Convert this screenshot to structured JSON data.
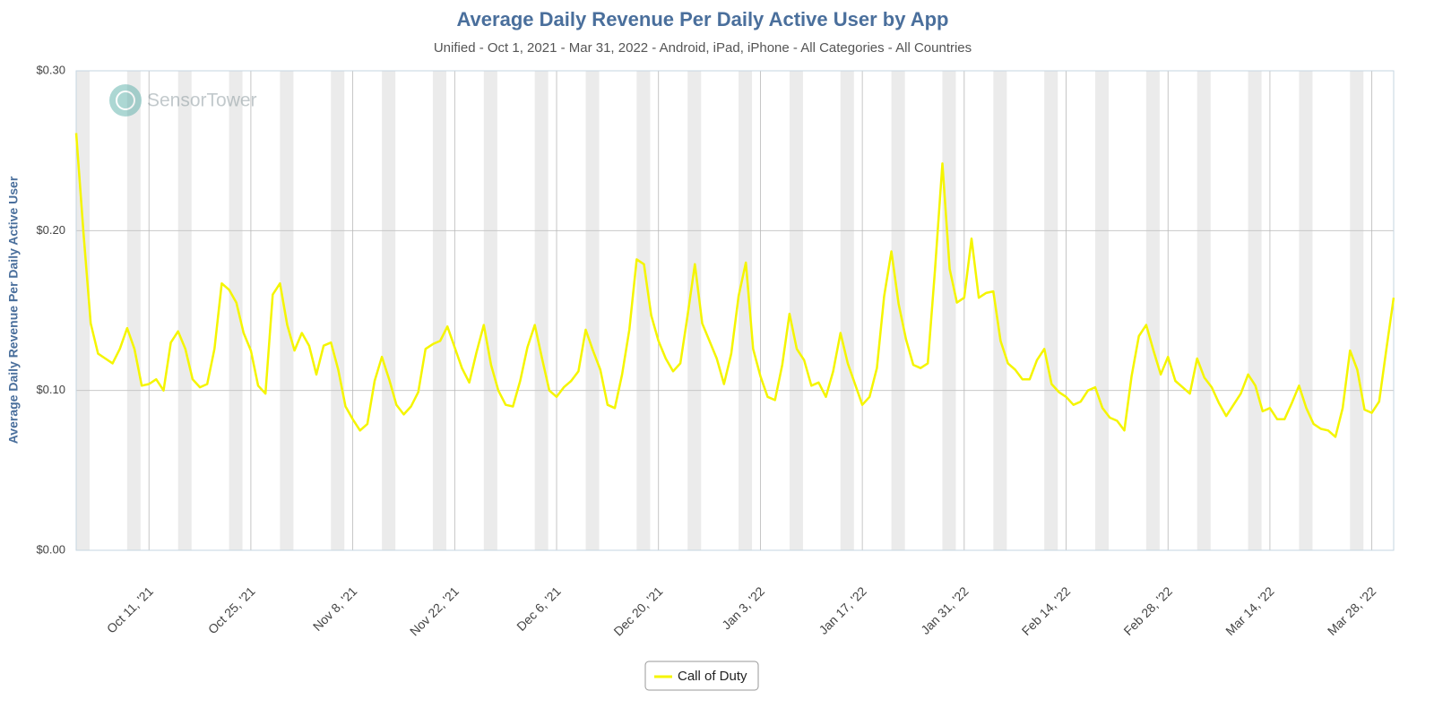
{
  "chart_data": {
    "type": "line",
    "title": "Average Daily Revenue Per Daily Active User by App",
    "subtitle": "Unified - Oct 1, 2021 - Mar 31, 2022 - Android, iPad, iPhone - All Categories - All Countries",
    "y_label": "Average Daily Revenue Per Daily Active User",
    "watermark": "SensorTower",
    "x": [
      "2021-10-01",
      "2021-10-02",
      "2021-10-03",
      "2021-10-04",
      "2021-10-05",
      "2021-10-06",
      "2021-10-07",
      "2021-10-08",
      "2021-10-09",
      "2021-10-10",
      "2021-10-11",
      "2021-10-12",
      "2021-10-13",
      "2021-10-14",
      "2021-10-15",
      "2021-10-16",
      "2021-10-17",
      "2021-10-18",
      "2021-10-19",
      "2021-10-20",
      "2021-10-21",
      "2021-10-22",
      "2021-10-23",
      "2021-10-24",
      "2021-10-25",
      "2021-10-26",
      "2021-10-27",
      "2021-10-28",
      "2021-10-29",
      "2021-10-30",
      "2021-10-31",
      "2021-11-01",
      "2021-11-02",
      "2021-11-03",
      "2021-11-04",
      "2021-11-05",
      "2021-11-06",
      "2021-11-07",
      "2021-11-08",
      "2021-11-09",
      "2021-11-10",
      "2021-11-11",
      "2021-11-12",
      "2021-11-13",
      "2021-11-14",
      "2021-11-15",
      "2021-11-16",
      "2021-11-17",
      "2021-11-18",
      "2021-11-19",
      "2021-11-20",
      "2021-11-21",
      "2021-11-22",
      "2021-11-23",
      "2021-11-24",
      "2021-11-25",
      "2021-11-26",
      "2021-11-27",
      "2021-11-28",
      "2021-11-29",
      "2021-11-30",
      "2021-12-01",
      "2021-12-02",
      "2021-12-03",
      "2021-12-04",
      "2021-12-05",
      "2021-12-06",
      "2021-12-07",
      "2021-12-08",
      "2021-12-09",
      "2021-12-10",
      "2021-12-11",
      "2021-12-12",
      "2021-12-13",
      "2021-12-14",
      "2021-12-15",
      "2021-12-16",
      "2021-12-17",
      "2021-12-18",
      "2021-12-19",
      "2021-12-20",
      "2021-12-21",
      "2021-12-22",
      "2021-12-23",
      "2021-12-24",
      "2021-12-25",
      "2021-12-26",
      "2021-12-27",
      "2021-12-28",
      "2021-12-29",
      "2021-12-30",
      "2021-12-31",
      "2022-01-01",
      "2022-01-02",
      "2022-01-03",
      "2022-01-04",
      "2022-01-05",
      "2022-01-06",
      "2022-01-07",
      "2022-01-08",
      "2022-01-09",
      "2022-01-10",
      "2022-01-11",
      "2022-01-12",
      "2022-01-13",
      "2022-01-14",
      "2022-01-15",
      "2022-01-16",
      "2022-01-17",
      "2022-01-18",
      "2022-01-19",
      "2022-01-20",
      "2022-01-21",
      "2022-01-22",
      "2022-01-23",
      "2022-01-24",
      "2022-01-25",
      "2022-01-26",
      "2022-01-27",
      "2022-01-28",
      "2022-01-29",
      "2022-01-30",
      "2022-01-31",
      "2022-02-01",
      "2022-02-02",
      "2022-02-03",
      "2022-02-04",
      "2022-02-05",
      "2022-02-06",
      "2022-02-07",
      "2022-02-08",
      "2022-02-09",
      "2022-02-10",
      "2022-02-11",
      "2022-02-12",
      "2022-02-13",
      "2022-02-14",
      "2022-02-15",
      "2022-02-16",
      "2022-02-17",
      "2022-02-18",
      "2022-02-19",
      "2022-02-20",
      "2022-02-21",
      "2022-02-22",
      "2022-02-23",
      "2022-02-24",
      "2022-02-25",
      "2022-02-26",
      "2022-02-27",
      "2022-02-28",
      "2022-03-01",
      "2022-03-02",
      "2022-03-03",
      "2022-03-04",
      "2022-03-05",
      "2022-03-06",
      "2022-03-07",
      "2022-03-08",
      "2022-03-09",
      "2022-03-10",
      "2022-03-11",
      "2022-03-12",
      "2022-03-13",
      "2022-03-14",
      "2022-03-15",
      "2022-03-16",
      "2022-03-17",
      "2022-03-18",
      "2022-03-19",
      "2022-03-20",
      "2022-03-21",
      "2022-03-22",
      "2022-03-23",
      "2022-03-24",
      "2022-03-25",
      "2022-03-26",
      "2022-03-27",
      "2022-03-28",
      "2022-03-29",
      "2022-03-30",
      "2022-03-31"
    ],
    "series": [
      {
        "name": "Call of Duty",
        "color": "#f5f500",
        "values": [
          0.261,
          0.199,
          0.142,
          0.123,
          0.12,
          0.117,
          0.126,
          0.139,
          0.126,
          0.103,
          0.104,
          0.107,
          0.1,
          0.13,
          0.137,
          0.126,
          0.107,
          0.102,
          0.104,
          0.126,
          0.167,
          0.163,
          0.155,
          0.136,
          0.125,
          0.103,
          0.098,
          0.16,
          0.167,
          0.141,
          0.125,
          0.136,
          0.128,
          0.11,
          0.128,
          0.13,
          0.113,
          0.09,
          0.082,
          0.075,
          0.079,
          0.106,
          0.121,
          0.107,
          0.091,
          0.085,
          0.09,
          0.099,
          0.126,
          0.129,
          0.131,
          0.14,
          0.127,
          0.114,
          0.105,
          0.124,
          0.141,
          0.116,
          0.1,
          0.091,
          0.09,
          0.106,
          0.127,
          0.141,
          0.12,
          0.1,
          0.096,
          0.102,
          0.106,
          0.112,
          0.138,
          0.125,
          0.113,
          0.091,
          0.089,
          0.11,
          0.138,
          0.182,
          0.179,
          0.147,
          0.131,
          0.12,
          0.112,
          0.117,
          0.147,
          0.179,
          0.142,
          0.131,
          0.12,
          0.104,
          0.123,
          0.159,
          0.18,
          0.126,
          0.109,
          0.096,
          0.094,
          0.116,
          0.148,
          0.126,
          0.119,
          0.103,
          0.105,
          0.096,
          0.112,
          0.136,
          0.117,
          0.104,
          0.091,
          0.096,
          0.114,
          0.159,
          0.187,
          0.154,
          0.132,
          0.116,
          0.114,
          0.117,
          0.176,
          0.242,
          0.176,
          0.155,
          0.158,
          0.195,
          0.158,
          0.161,
          0.162,
          0.131,
          0.117,
          0.113,
          0.107,
          0.107,
          0.119,
          0.126,
          0.104,
          0.099,
          0.096,
          0.091,
          0.093,
          0.1,
          0.102,
          0.089,
          0.083,
          0.081,
          0.075,
          0.109,
          0.134,
          0.141,
          0.125,
          0.11,
          0.121,
          0.106,
          0.102,
          0.098,
          0.12,
          0.108,
          0.102,
          0.092,
          0.084,
          0.091,
          0.098,
          0.11,
          0.103,
          0.087,
          0.089,
          0.082,
          0.082,
          0.092,
          0.103,
          0.089,
          0.079,
          0.076,
          0.075,
          0.071,
          0.089,
          0.125,
          0.113,
          0.088,
          0.086,
          0.093,
          0.126,
          0.158
        ]
      }
    ],
    "xlim": [
      "2021-10-01",
      "2022-03-31"
    ],
    "xticks": [
      {
        "value": "2021-10-11",
        "label": "Oct 11, '21"
      },
      {
        "value": "2021-10-25",
        "label": "Oct 25, '21"
      },
      {
        "value": "2021-11-08",
        "label": "Nov 8, '21"
      },
      {
        "value": "2021-11-22",
        "label": "Nov 22, '21"
      },
      {
        "value": "2021-12-06",
        "label": "Dec 6, '21"
      },
      {
        "value": "2021-12-20",
        "label": "Dec 20, '21"
      },
      {
        "value": "2022-01-03",
        "label": "Jan 3, '22"
      },
      {
        "value": "2022-01-17",
        "label": "Jan 17, '22"
      },
      {
        "value": "2022-01-31",
        "label": "Jan 31, '22"
      },
      {
        "value": "2022-02-14",
        "label": "Feb 14, '22"
      },
      {
        "value": "2022-02-28",
        "label": "Feb 28, '22"
      },
      {
        "value": "2022-03-14",
        "label": "Mar 14, '22"
      },
      {
        "value": "2022-03-28",
        "label": "Mar 28, '22"
      }
    ],
    "ylim": [
      0,
      0.3
    ],
    "yticks": [
      {
        "value": 0,
        "label": "$0.00"
      },
      {
        "value": 0.1,
        "label": "$0.10"
      },
      {
        "value": 0.2,
        "label": "$0.20"
      },
      {
        "value": 0.3,
        "label": "$0.30"
      }
    ],
    "grid": true,
    "weekend_shading": true,
    "legend": "bottom"
  }
}
